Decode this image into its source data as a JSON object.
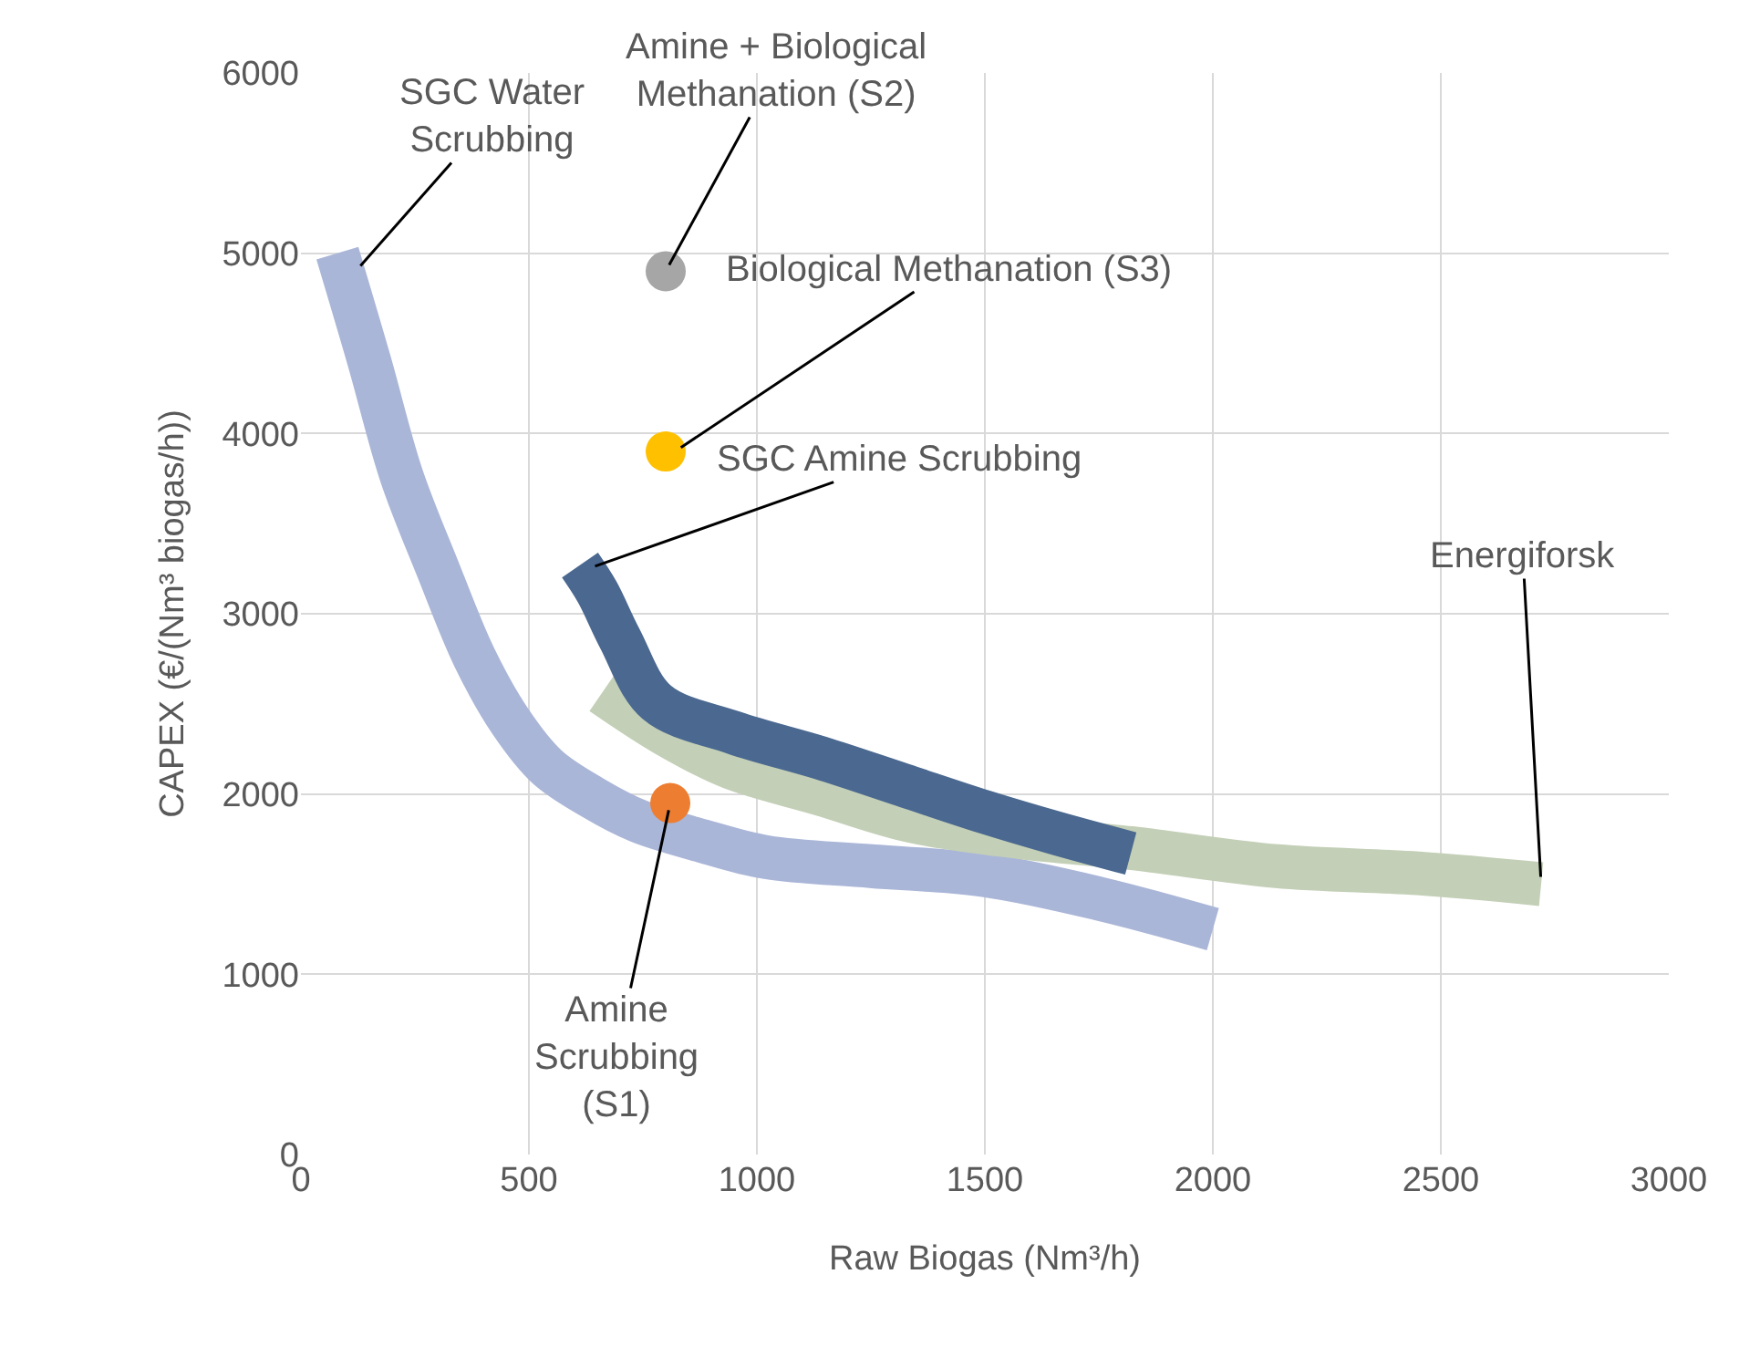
{
  "chart_data": {
    "type": "line",
    "xlabel": "Raw Biogas (Nm³/h)",
    "ylabel": "CAPEX (€/(Nm³ biogas/h))",
    "xlim": [
      0,
      3000
    ],
    "xticks": [
      0,
      500,
      1000,
      1500,
      2000,
      2500,
      3000
    ],
    "ylim": [
      0,
      6000
    ],
    "yticks": [
      0,
      1000,
      2000,
      3000,
      4000,
      5000,
      6000
    ],
    "grid": true,
    "series": [
      {
        "color": "#aab6d8",
        "x": [
          80,
          150,
          220,
          300,
          380,
          460,
          540,
          640,
          740,
          880,
          1020,
          1250,
          1500,
          1750,
          2000
        ],
        "values": [
          5000,
          4400,
          3770,
          3250,
          2760,
          2400,
          2150,
          1980,
          1850,
          1740,
          1650,
          1600,
          1550,
          1420,
          1250
        ]
      },
      {
        "color": "#c3cfb6",
        "x": [
          660,
          800,
          940,
          1140,
          1340,
          1580,
          1820,
          2140,
          2450,
          2720
        ],
        "values": [
          2560,
          2330,
          2150,
          2000,
          1850,
          1760,
          1700,
          1600,
          1560,
          1500
        ]
      },
      {
        "color": "#4a6890",
        "x": [
          612,
          650,
          700,
          780,
          950,
          1140,
          1320,
          1500,
          1660,
          1820
        ],
        "values": [
          3270,
          3120,
          2860,
          2510,
          2340,
          2200,
          2050,
          1900,
          1780,
          1670
        ]
      },
      {
        "type": "scatter",
        "color": "#a6a6a6",
        "x": [
          800
        ],
        "values": [
          4900
        ]
      },
      {
        "type": "scatter",
        "color": "#ffc000",
        "x": [
          800
        ],
        "values": [
          3900
        ]
      },
      {
        "type": "scatter",
        "color": "#ed7d31",
        "x": [
          810
        ],
        "values": [
          1950
        ]
      }
    ],
    "annotations": [
      {
        "text": "SGC Water\nScrubbing",
        "x": 120,
        "y": 4900
      },
      {
        "text": "Amine + Biological\nMethanation (S2)",
        "x": 800,
        "y": 4900
      },
      {
        "text": "Biological Methanation (S3)",
        "x": 820,
        "y": 3900
      },
      {
        "text": "SGC Amine Scrubbing",
        "x": 630,
        "y": 3250
      },
      {
        "text": "Energiforsk",
        "x": 2720,
        "y": 1500
      },
      {
        "text": "Amine\nScrubbing\n(S1)",
        "x": 810,
        "y": 1950
      }
    ]
  }
}
